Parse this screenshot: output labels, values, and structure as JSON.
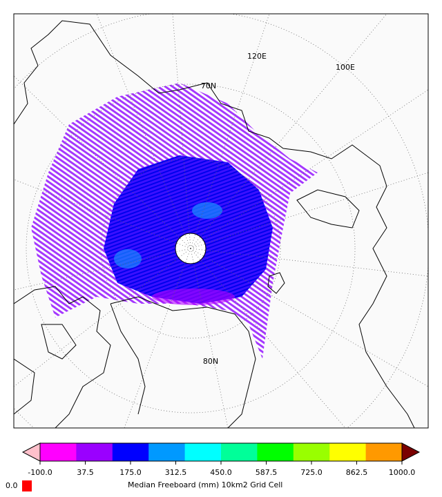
{
  "map": {
    "labels": [
      "120E",
      "100E",
      "70N",
      "80N"
    ]
  },
  "colorbar": {
    "label": "Median Freeboard (mm) 10km2 Grid Cell",
    "range": [
      -100,
      1000
    ],
    "ticks": [
      {
        "value": -100,
        "label": "-100.0"
      },
      37.5,
      {
        "value": 175,
        "label": "175.0"
      },
      312.5,
      {
        "value": 450,
        "label": "450.0"
      },
      587.5,
      {
        "value": 725,
        "label": "725.0"
      },
      862.5,
      {
        "value": 1000,
        "label": "1000.0"
      }
    ],
    "colors": [
      "#ff00ff",
      "#9a00ff",
      "#0000ff",
      "#0099ff",
      "#00ffff",
      "#00ff99",
      "#00ff00",
      "#99ff00",
      "#ffff00",
      "#ff9900"
    ],
    "under_color": "#ffc0cb",
    "over_color": "#7a0000"
  },
  "missing": {
    "label": "0.0",
    "color": "#ff0000"
  }
}
